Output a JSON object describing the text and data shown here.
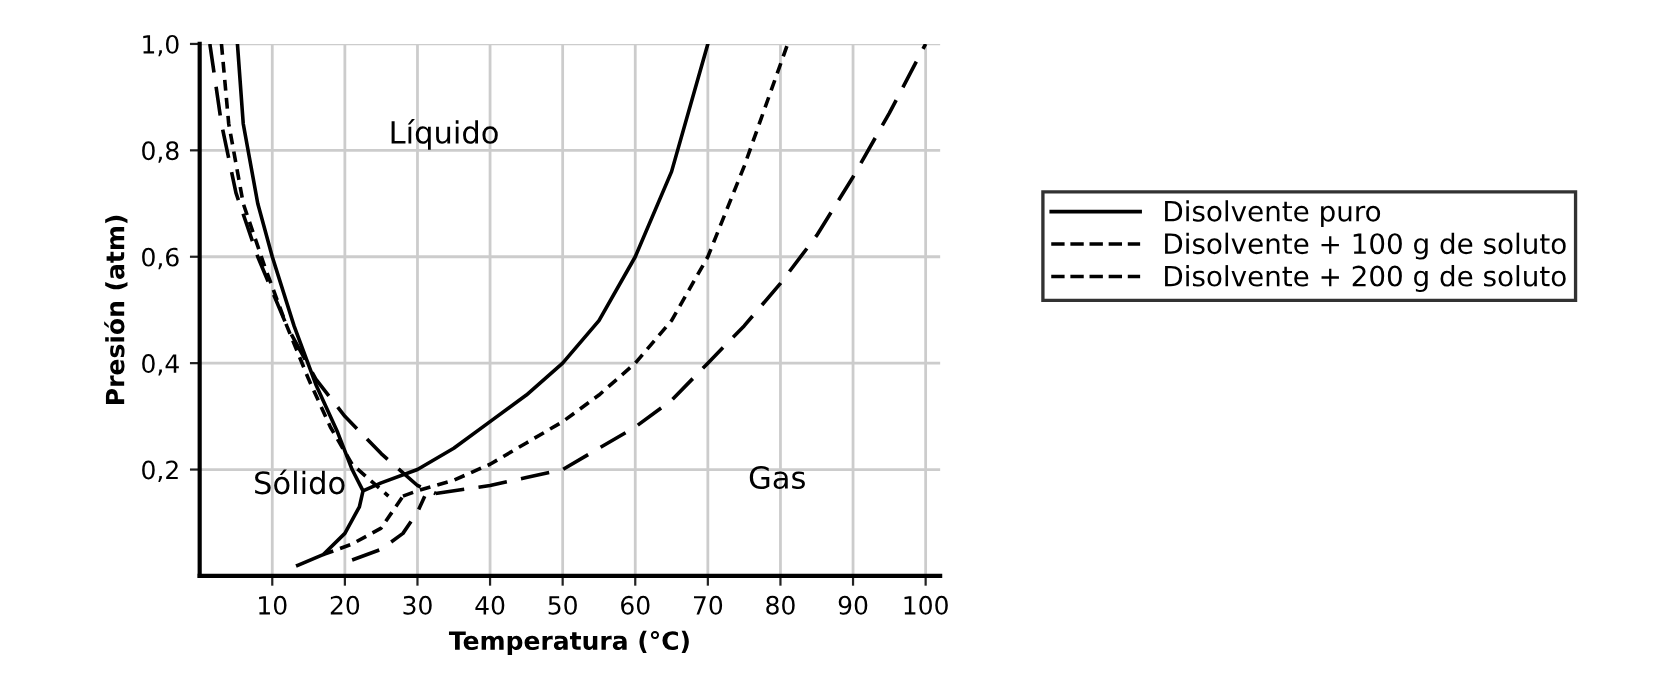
{
  "chart_data": {
    "type": "line",
    "xlabel": "Temperatura (°C)",
    "ylabel": "Presión (atm)",
    "xlim": [
      0,
      102
    ],
    "ylim": [
      0,
      1.0
    ],
    "xticks": [
      10,
      20,
      30,
      40,
      50,
      60,
      70,
      80,
      90,
      100
    ],
    "yticks": [
      {
        "value": 0.2,
        "label": "0,2"
      },
      {
        "value": 0.4,
        "label": "0,4"
      },
      {
        "value": 0.6,
        "label": "0,6"
      },
      {
        "value": 0.8,
        "label": "0,8"
      },
      {
        "value": 1.0,
        "label": "1,0"
      }
    ],
    "grid": true,
    "legend": "right",
    "marker": "none",
    "series": [
      {
        "name": "Disolvente puro",
        "color": "#000000",
        "line_style": "solid",
        "x": [
          5.2,
          6,
          8,
          10,
          13,
          16,
          19,
          21,
          22.5,
          null,
          13.5,
          17,
          20,
          22,
          22.5,
          null,
          22.5,
          25,
          30,
          35,
          40,
          45,
          50,
          55,
          60,
          65,
          70
        ],
        "values": [
          1.0,
          0.85,
          0.7,
          0.6,
          0.47,
          0.36,
          0.27,
          0.2,
          0.16,
          null,
          0.02,
          0.04,
          0.08,
          0.13,
          0.16,
          null,
          0.16,
          0.175,
          0.2,
          0.24,
          0.29,
          0.34,
          0.4,
          0.48,
          0.6,
          0.76,
          1.0
        ]
      },
      {
        "name": "Disolvente + 100 g de soluto",
        "color": "#000000",
        "line_style": "dotted",
        "x": [
          3,
          4,
          6,
          9,
          12,
          15,
          18,
          21,
          26,
          null,
          17,
          21,
          25,
          27,
          28,
          null,
          28,
          30,
          35,
          40,
          45,
          50,
          55,
          60,
          65,
          70,
          75,
          81
        ],
        "values": [
          1.0,
          0.85,
          0.7,
          0.58,
          0.47,
          0.37,
          0.28,
          0.21,
          0.15,
          null,
          0.04,
          0.06,
          0.09,
          0.13,
          0.15,
          null,
          0.15,
          0.16,
          0.18,
          0.21,
          0.25,
          0.29,
          0.34,
          0.4,
          0.48,
          0.6,
          0.77,
          1.0
        ]
      },
      {
        "name": "Disolvente + 200 g de soluto",
        "color": "#000000",
        "line_style": "dashed",
        "x": [
          1.4,
          3,
          5,
          8,
          12,
          16,
          20,
          25,
          30,
          32.5,
          null,
          21,
          25,
          28,
          30,
          31,
          null,
          32.5,
          40,
          45,
          50,
          55,
          60,
          65,
          70,
          75,
          80,
          85,
          90,
          95,
          100
        ],
        "values": [
          1.0,
          0.85,
          0.72,
          0.6,
          0.47,
          0.37,
          0.3,
          0.23,
          0.17,
          0.155,
          null,
          0.03,
          0.05,
          0.08,
          0.12,
          0.15,
          null,
          0.155,
          0.17,
          0.185,
          0.2,
          0.24,
          0.28,
          0.33,
          0.4,
          0.47,
          0.55,
          0.64,
          0.75,
          0.87,
          1.0
        ]
      }
    ],
    "annotations": [
      "Líquido",
      "Sólido",
      "Gas"
    ]
  }
}
